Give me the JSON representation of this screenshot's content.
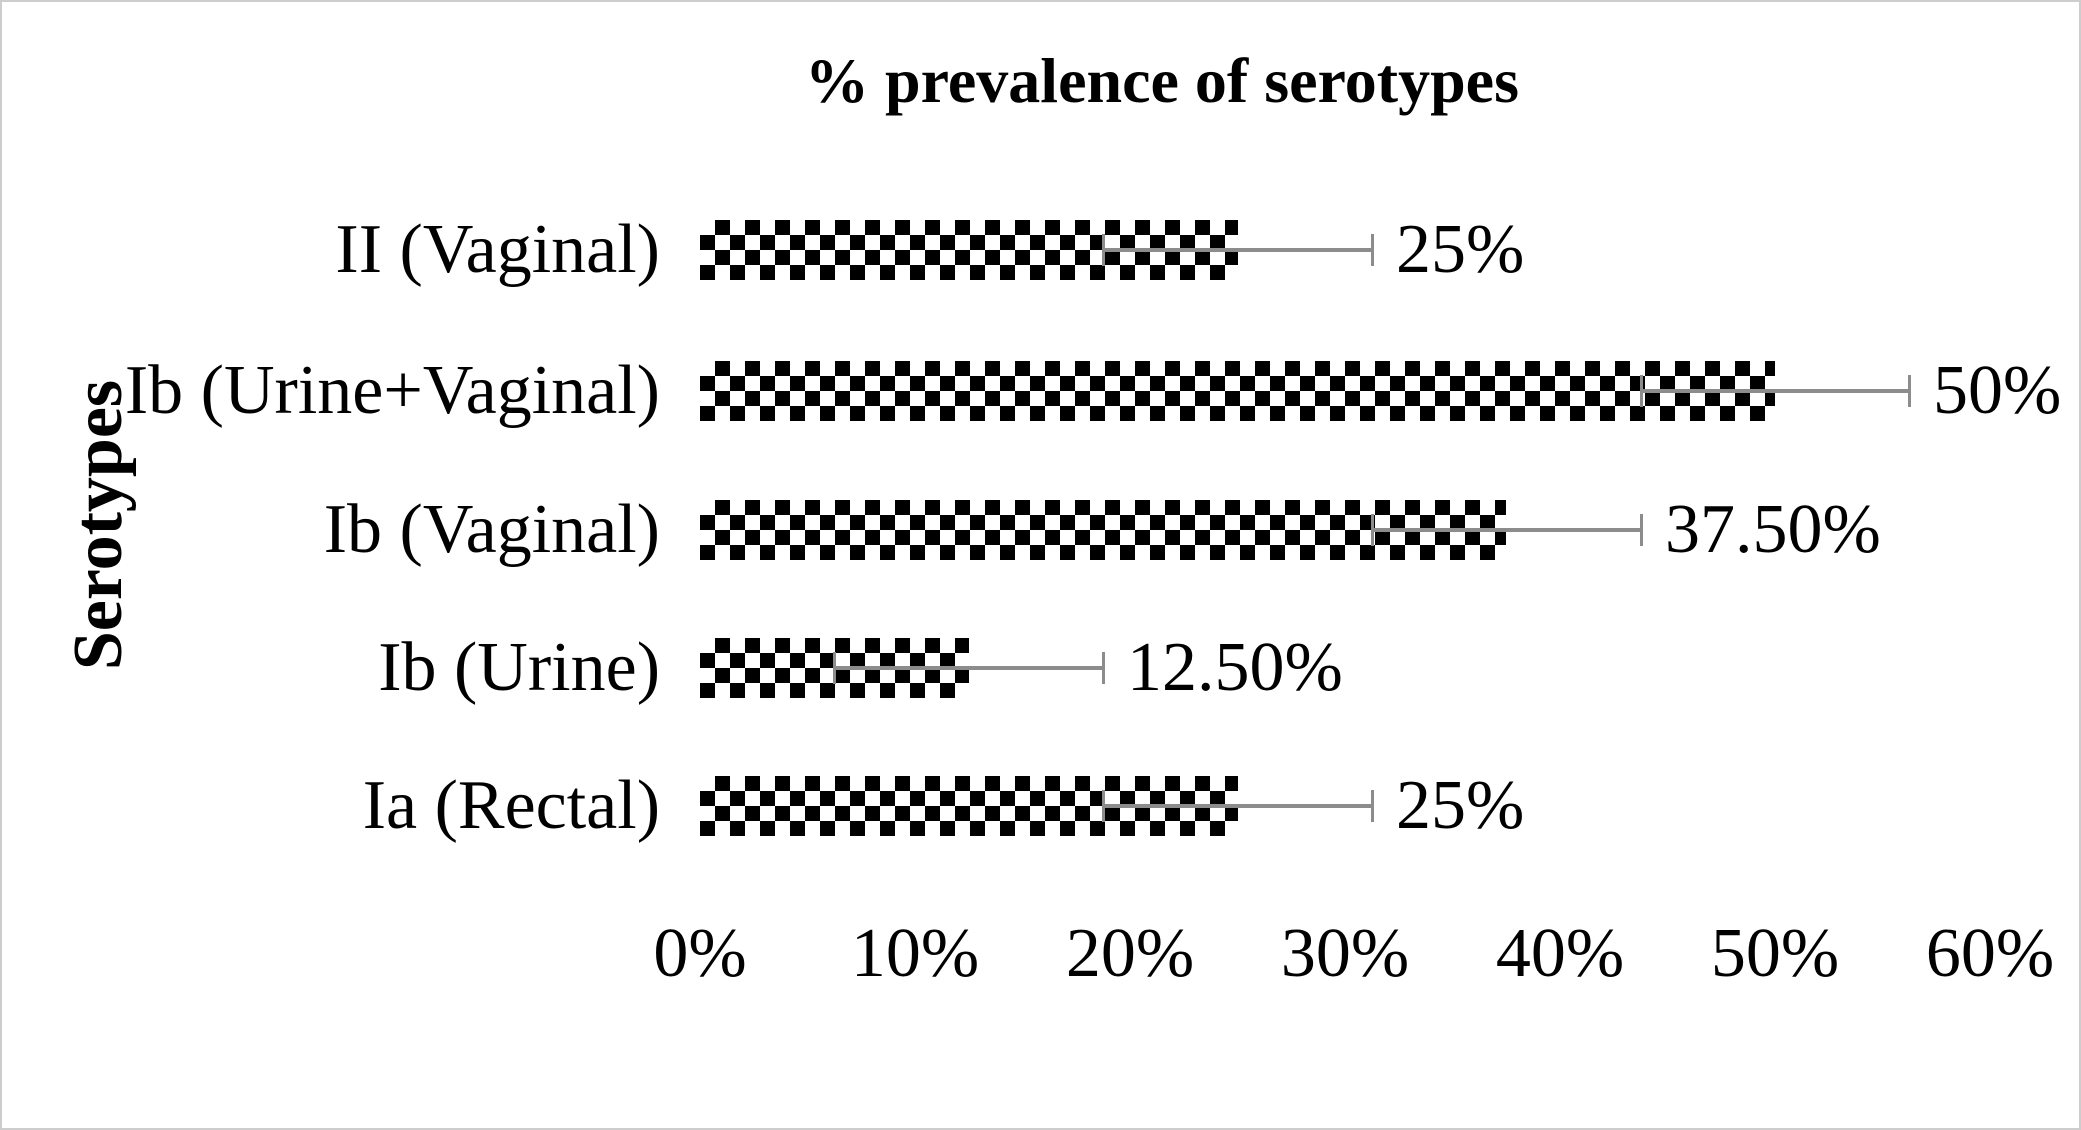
{
  "chart_data": {
    "type": "bar",
    "orientation": "horizontal",
    "title": "% prevalence of serotypes",
    "xlabel": "",
    "ylabel": "Serotypes",
    "xlim": [
      0,
      60
    ],
    "grid": false,
    "legend": "none",
    "categories": [
      "II (Vaginal)",
      "Ib (Urine+Vaginal)",
      "Ib (Vaginal)",
      "Ib (Urine)",
      "Ia (Rectal)"
    ],
    "values": [
      25,
      50,
      37.5,
      12.5,
      25
    ],
    "rows": [
      {
        "category": "II (Vaginal)",
        "value": 25,
        "error": 6.25,
        "label": "25%"
      },
      {
        "category": "Ib (Urine+Vaginal)",
        "value": 50,
        "error": 6.25,
        "label": "50%"
      },
      {
        "category": "Ib (Vaginal)",
        "value": 37.5,
        "error": 6.25,
        "label": "37.50%"
      },
      {
        "category": "Ib (Urine)",
        "value": 12.5,
        "error": 6.25,
        "label": "12.50%"
      },
      {
        "category": "Ia (Rectal)",
        "value": 25,
        "error": 6.25,
        "label": "25%"
      }
    ],
    "xticks": [
      {
        "label": "0%",
        "value": 0
      },
      {
        "label": "10%",
        "value": 10
      },
      {
        "label": "20%",
        "value": 20
      },
      {
        "label": "30%",
        "value": 30
      },
      {
        "label": "40%",
        "value": 40
      },
      {
        "label": "50%",
        "value": 50
      },
      {
        "label": "60%",
        "value": 60
      }
    ],
    "bar_style": "black-white checkerboard pattern"
  },
  "colors": {
    "bar_checker": "#000000",
    "bar_background": "#ffffff",
    "error_bar": "#8c8c8c",
    "text": "#000000",
    "page_border": "#cdcdcd",
    "background": "#ffffff"
  }
}
